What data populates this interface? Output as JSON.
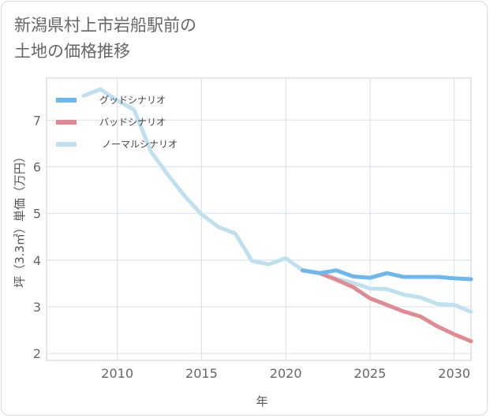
{
  "title_line1": "新潟県村上市岩船駅前の",
  "title_line2": "土地の価格推移",
  "chart_data": {
    "type": "line",
    "xlabel": "年",
    "ylabel": "坪（3.3㎡）単価（万円）",
    "xlim": [
      2005.8,
      2031
    ],
    "ylim": [
      1.85,
      7.9
    ],
    "xticks": [
      2010,
      2015,
      2020,
      2025,
      2030
    ],
    "yticks": [
      2,
      3,
      4,
      5,
      6,
      7
    ],
    "grid": true,
    "legend_position": "top-left",
    "series": [
      {
        "name": "グッドシナリオ",
        "color": "#6bb8ef",
        "x": [
          2021,
          2022,
          2023,
          2024,
          2025,
          2026,
          2027,
          2028,
          2029,
          2030,
          2031
        ],
        "y": [
          3.78,
          3.72,
          3.78,
          3.65,
          3.62,
          3.72,
          3.64,
          3.64,
          3.64,
          3.61,
          3.59
        ]
      },
      {
        "name": "バッドシナリオ",
        "color": "#e08a92",
        "x": [
          2021,
          2022,
          2023,
          2024,
          2025,
          2026,
          2027,
          2028,
          2029,
          2030,
          2031
        ],
        "y": [
          3.78,
          3.72,
          3.58,
          3.42,
          3.18,
          3.04,
          2.9,
          2.79,
          2.58,
          2.41,
          2.26
        ]
      },
      {
        "name": "ノーマルシナリオ",
        "color": "#bfe0ee",
        "x": [
          2008,
          2009,
          2010,
          2011,
          2012,
          2013,
          2014,
          2015,
          2016,
          2017,
          2018,
          2019,
          2020,
          2021,
          2022,
          2023,
          2024,
          2025,
          2026,
          2027,
          2028,
          2029,
          2030,
          2031
        ],
        "y": [
          7.52,
          7.66,
          7.42,
          7.22,
          6.32,
          5.83,
          5.37,
          4.98,
          4.71,
          4.57,
          3.98,
          3.91,
          4.04,
          3.78,
          3.72,
          3.6,
          3.51,
          3.39,
          3.38,
          3.26,
          3.2,
          3.06,
          3.04,
          2.89
        ]
      }
    ]
  }
}
